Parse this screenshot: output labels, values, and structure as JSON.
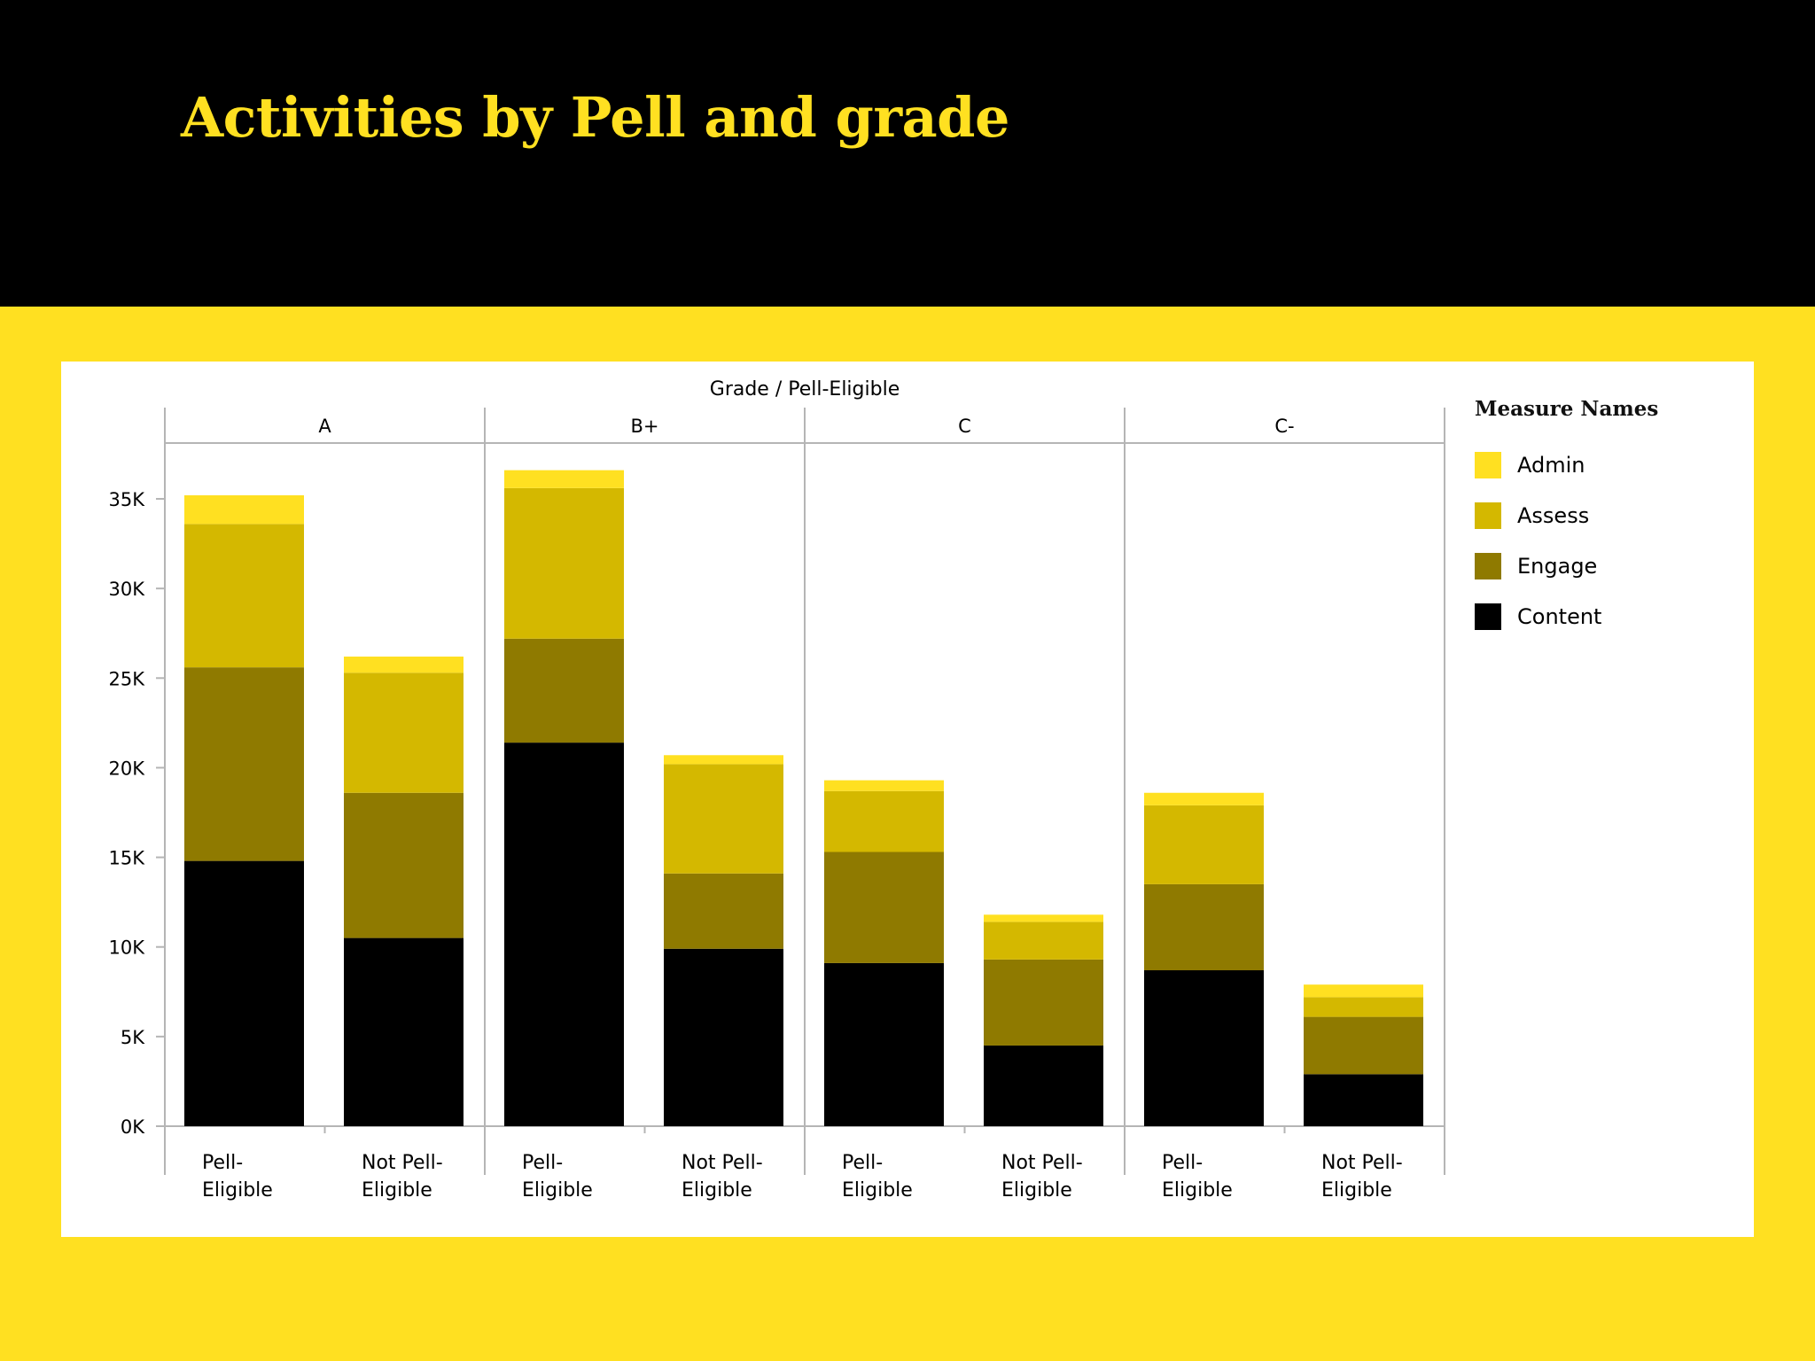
{
  "slide": {
    "title": "Activities by Pell and grade"
  },
  "legend": {
    "title": "Measure Names",
    "items": [
      {
        "label": "Admin",
        "color": "#FFE021"
      },
      {
        "label": "Assess",
        "color": "#D4B800"
      },
      {
        "label": "Engage",
        "color": "#8F7A00"
      },
      {
        "label": "Content",
        "color": "#000000"
      }
    ]
  },
  "chart_data": {
    "type": "bar",
    "stacked": true,
    "title": "",
    "column_header": "Grade / Pell-Eligible",
    "groups": [
      "A",
      "B+",
      "C",
      "C-"
    ],
    "categories": [
      "Pell-Eligible",
      "Not Pell-Eligible"
    ],
    "category_labels": [
      [
        "Pell-",
        "Eligible"
      ],
      [
        "Not Pell-",
        "Eligible"
      ]
    ],
    "ylim": [
      0,
      38000
    ],
    "yticks": [
      0,
      5000,
      10000,
      15000,
      20000,
      25000,
      30000,
      35000
    ],
    "ytick_labels": [
      "0K",
      "5K",
      "10K",
      "15K",
      "20K",
      "25K",
      "30K",
      "35K"
    ],
    "xlabel": "",
    "ylabel": "",
    "grid": false,
    "legend_position": "right",
    "series": [
      {
        "name": "Content",
        "color": "#000000",
        "values": [
          [
            14800,
            10500
          ],
          [
            21400,
            9900
          ],
          [
            9100,
            4500
          ],
          [
            8700,
            2900
          ]
        ]
      },
      {
        "name": "Engage",
        "color": "#8F7A00",
        "values": [
          [
            10800,
            8100
          ],
          [
            5800,
            4200
          ],
          [
            6200,
            4800
          ],
          [
            4800,
            3200
          ]
        ]
      },
      {
        "name": "Assess",
        "color": "#D4B800",
        "values": [
          [
            8000,
            6700
          ],
          [
            8400,
            6100
          ],
          [
            3400,
            2100
          ],
          [
            4400,
            1100
          ]
        ]
      },
      {
        "name": "Admin",
        "color": "#FFE021",
        "values": [
          [
            1600,
            900
          ],
          [
            1000,
            500
          ],
          [
            600,
            400
          ],
          [
            700,
            700
          ]
        ]
      }
    ]
  }
}
